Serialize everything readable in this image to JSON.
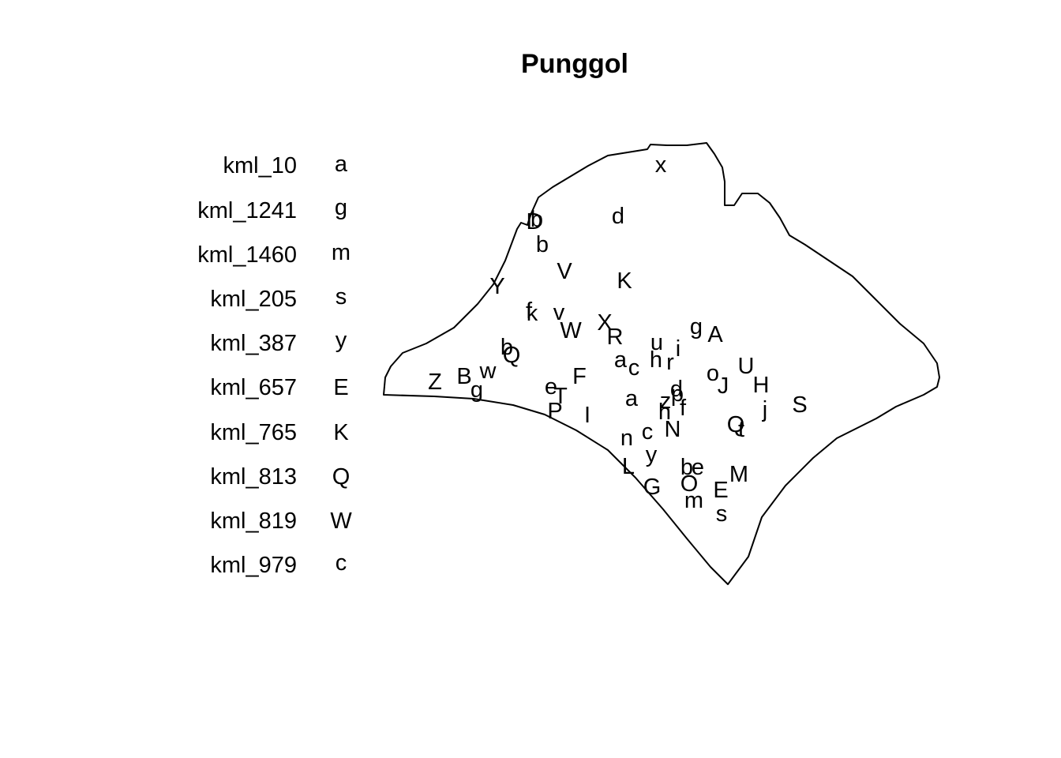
{
  "map": {
    "title": "Punggol",
    "legend": [
      {
        "name": "kml_10",
        "code": "a"
      },
      {
        "name": "kml_1241",
        "code": "g"
      },
      {
        "name": "kml_1460",
        "code": "m"
      },
      {
        "name": "kml_205",
        "code": "s"
      },
      {
        "name": "kml_387",
        "code": "y"
      },
      {
        "name": "kml_657",
        "code": "E"
      },
      {
        "name": "kml_765",
        "code": "K"
      },
      {
        "name": "kml_813",
        "code": "Q"
      },
      {
        "name": "kml_819",
        "code": "W"
      },
      {
        "name": "kml_979",
        "code": "c"
      }
    ],
    "point_labels": [
      "x",
      "d",
      "D",
      "b",
      "b",
      "V",
      "K",
      "Y",
      "f",
      "k",
      "v",
      "W",
      "X",
      "R",
      "g",
      "A",
      "u",
      "i",
      "h",
      "r",
      "a",
      "c",
      "b",
      "Q",
      "w",
      "B",
      "Z",
      "g",
      "e",
      "F",
      "T",
      "o",
      "U",
      "J",
      "H",
      "S",
      "j",
      "a",
      "z",
      "d",
      "p",
      "h",
      "f",
      "P",
      "I",
      "N",
      "Q",
      "t",
      "c",
      "n",
      "y",
      "L",
      "b",
      "e",
      "M",
      "G",
      "O",
      "E",
      "m",
      "s"
    ],
    "outline_color": "#000000",
    "background_color": "#ffffff"
  }
}
